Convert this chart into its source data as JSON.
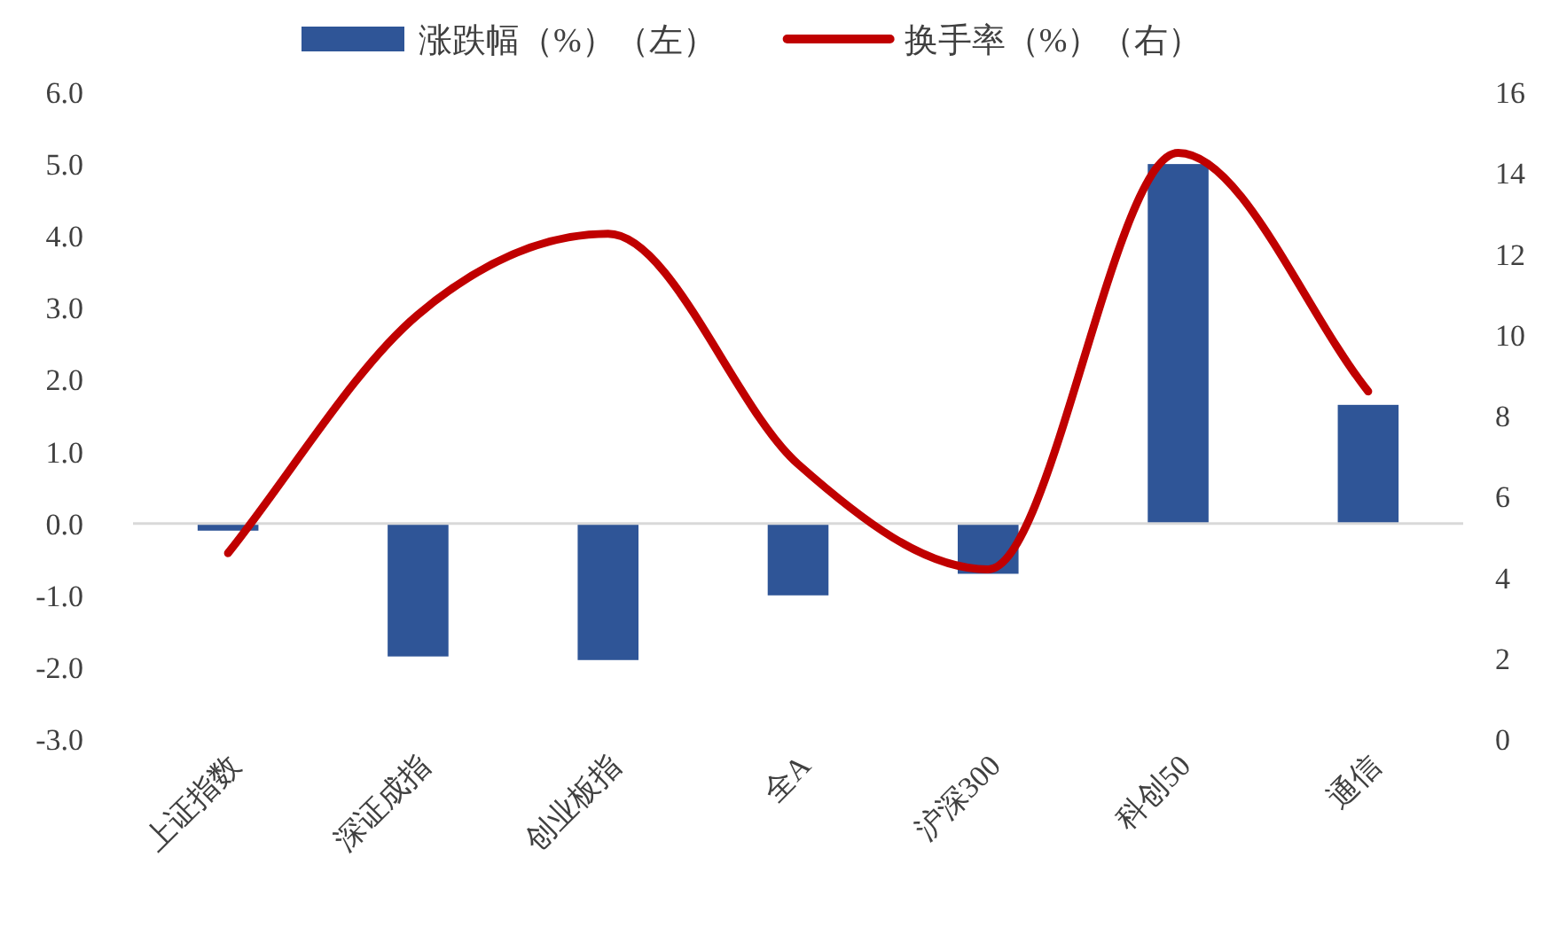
{
  "chart_data": {
    "type": "bar",
    "categories": [
      "上证指数",
      "深证成指",
      "创业板指",
      "全A",
      "沪深300",
      "科创50",
      "通信"
    ],
    "series": [
      {
        "name": "涨跌幅（%）（左）",
        "color": "#2f5597",
        "values": [
          -0.1,
          -1.85,
          -1.9,
          -1.0,
          -0.7,
          5.0,
          1.65
        ]
      },
      {
        "name": "换手率（%）（右）",
        "type": "line",
        "axis": "y2",
        "color": "#c00000",
        "values": [
          4.6,
          10.5,
          12.5,
          6.8,
          4.2,
          14.5,
          8.6
        ]
      }
    ],
    "ylim": [
      -3,
      6
    ],
    "yticks": [
      {
        "value": -3,
        "label": "-3.0"
      },
      {
        "value": -2,
        "label": "-2.0"
      },
      {
        "value": -1,
        "label": "-1.0"
      },
      {
        "value": 0,
        "label": "0.0"
      },
      {
        "value": 1,
        "label": "1.0"
      },
      {
        "value": 2,
        "label": "2.0"
      },
      {
        "value": 3,
        "label": "3.0"
      },
      {
        "value": 4,
        "label": "4.0"
      },
      {
        "value": 5,
        "label": "5.0"
      },
      {
        "value": 6,
        "label": "6.0"
      }
    ],
    "y2lim": [
      0,
      16
    ],
    "y2ticks": [
      0,
      2,
      4,
      6,
      8,
      10,
      12,
      14,
      16
    ],
    "legend": "top",
    "marker": "none",
    "line_style": "solid"
  }
}
